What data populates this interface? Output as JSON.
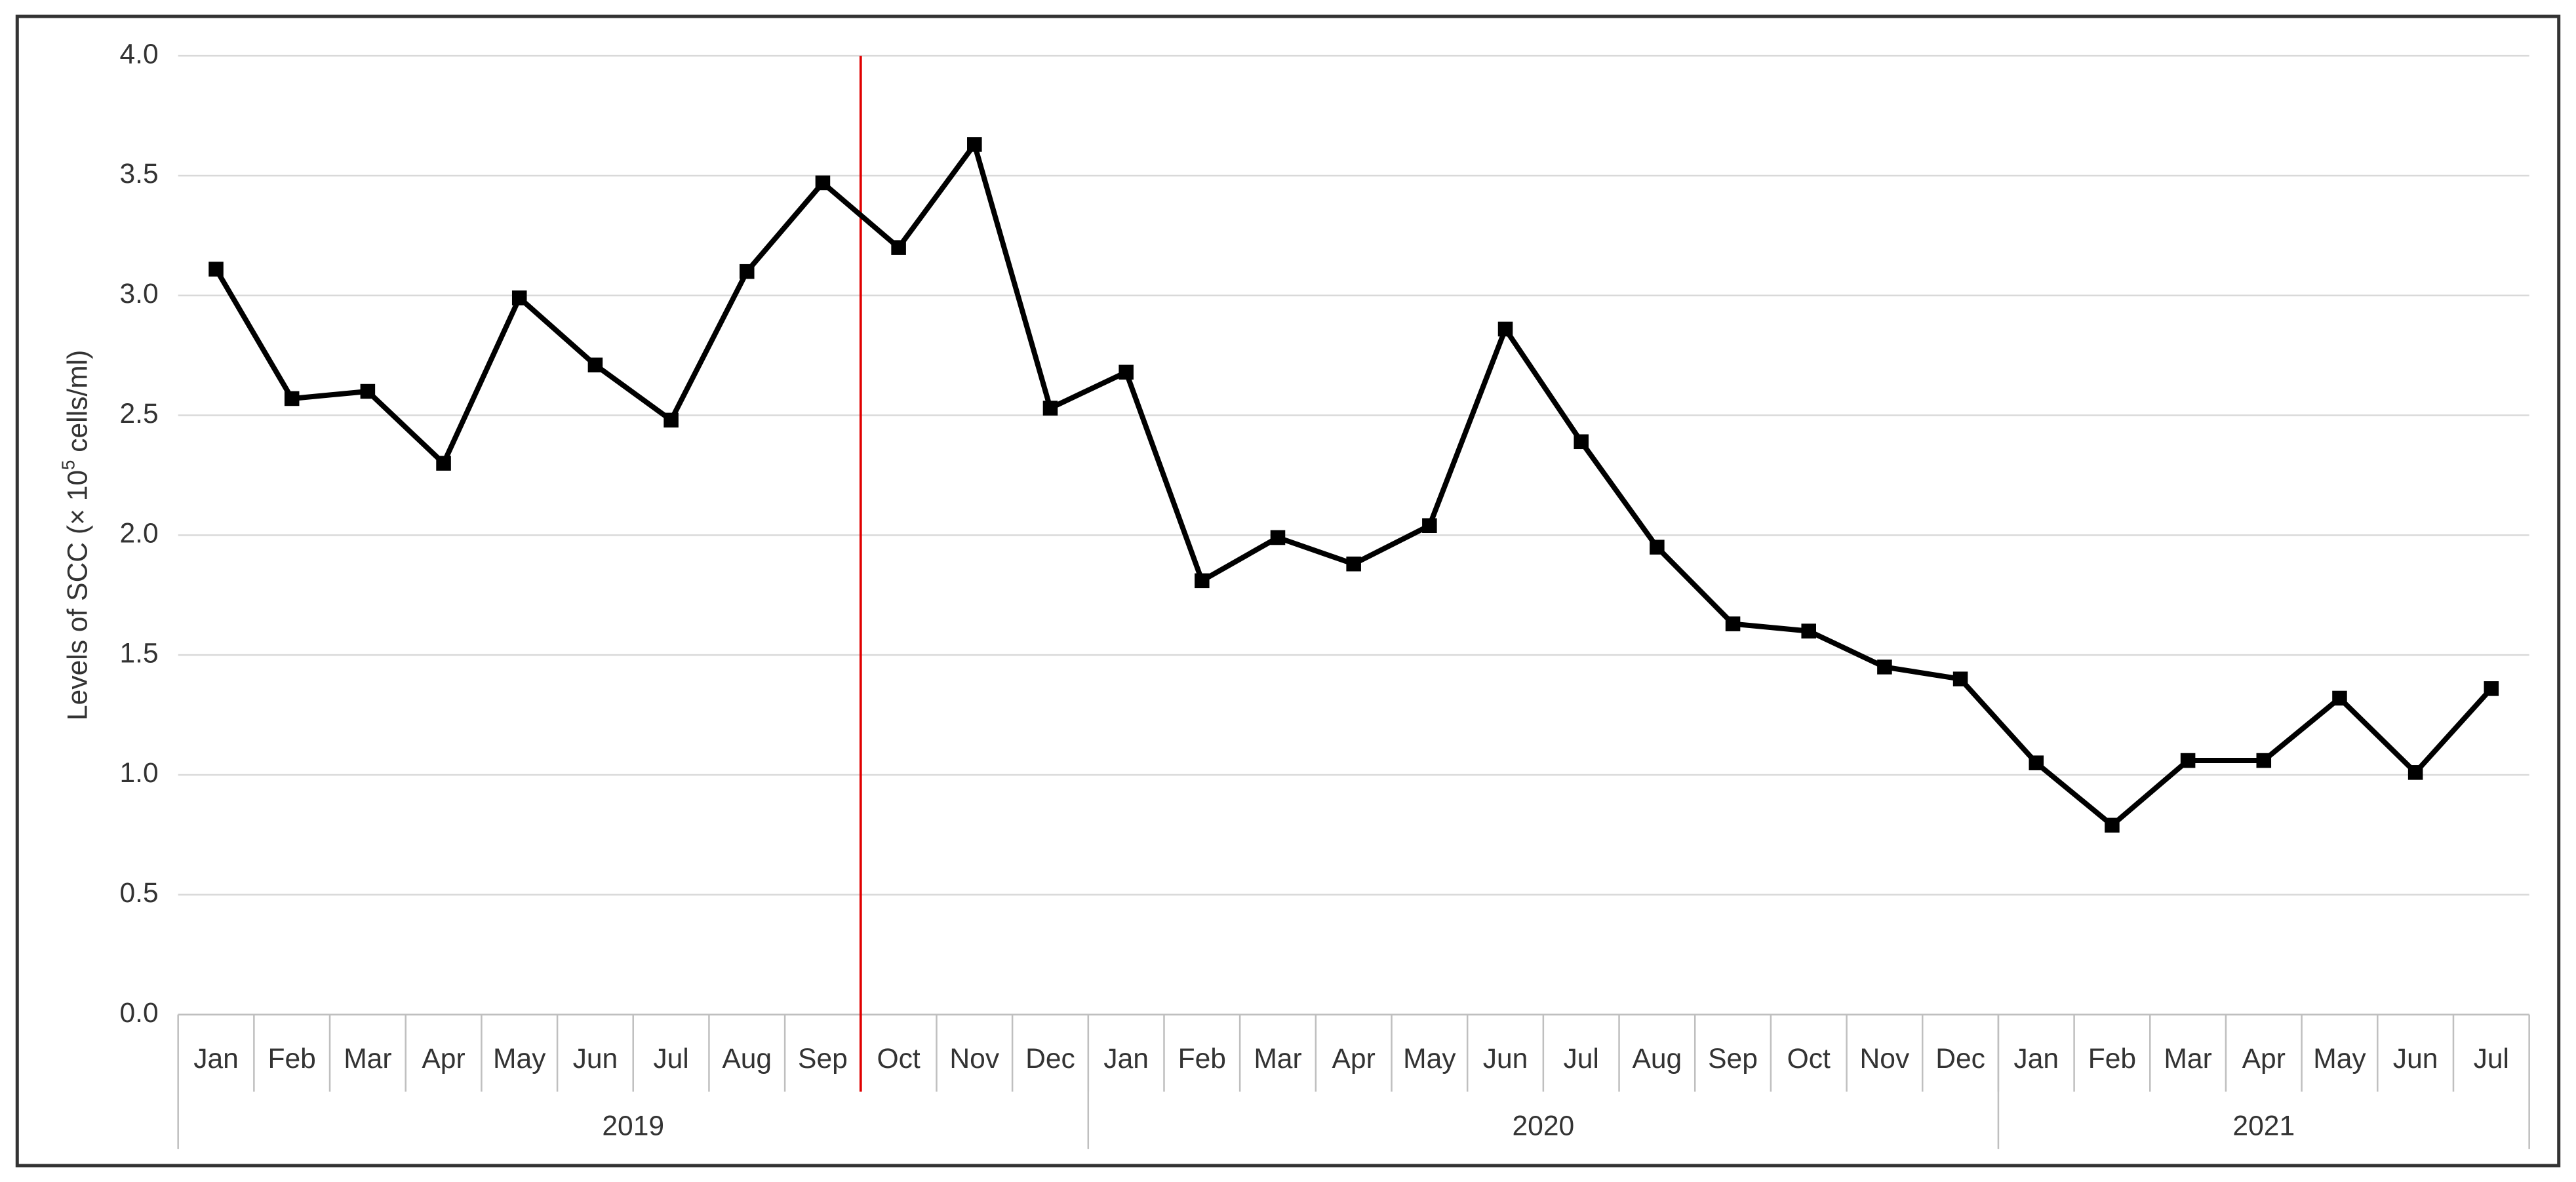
{
  "chart_data": {
    "type": "line",
    "y_label": {
      "text": "Levels of SCC (× 10",
      "superscript": "5",
      "suffix": " cells/ml)"
    },
    "categories": [
      "Jan",
      "Feb",
      "Mar",
      "Apr",
      "May",
      "Jun",
      "Jul",
      "Aug",
      "Sep",
      "Oct",
      "Nov",
      "Dec",
      "Jan",
      "Feb",
      "Mar",
      "Apr",
      "May",
      "Jun",
      "Jul",
      "Aug",
      "Sep",
      "Oct",
      "Nov",
      "Dec",
      "Jan",
      "Feb",
      "Mar",
      "Apr",
      "May",
      "Jun",
      "Jul"
    ],
    "groups": [
      {
        "label": "2019",
        "count": 12
      },
      {
        "label": "2020",
        "count": 12
      },
      {
        "label": "2021",
        "count": 7
      }
    ],
    "series": [
      {
        "color": "#000000",
        "values": [
          3.11,
          2.57,
          2.6,
          2.3,
          2.99,
          2.71,
          2.48,
          3.1,
          3.47,
          3.2,
          3.63,
          2.53,
          2.68,
          1.81,
          1.99,
          1.88,
          2.04,
          2.86,
          2.39,
          1.95,
          1.63,
          1.6,
          1.45,
          1.4,
          1.05,
          0.79,
          1.06,
          1.06,
          1.32,
          1.01,
          1.36
        ]
      }
    ],
    "ylim": [
      0,
      4
    ],
    "yticks": [
      {
        "value": 0,
        "label": "0.0"
      },
      0.5,
      {
        "value": 1,
        "label": "1.0"
      },
      1.5,
      {
        "value": 2,
        "label": "2.0"
      },
      2.5,
      {
        "value": 3,
        "label": "3.0"
      },
      3.5,
      {
        "value": 4,
        "label": "4.0"
      }
    ],
    "grid": true,
    "vline_before_category": 9,
    "vline_color": "#e00000"
  }
}
